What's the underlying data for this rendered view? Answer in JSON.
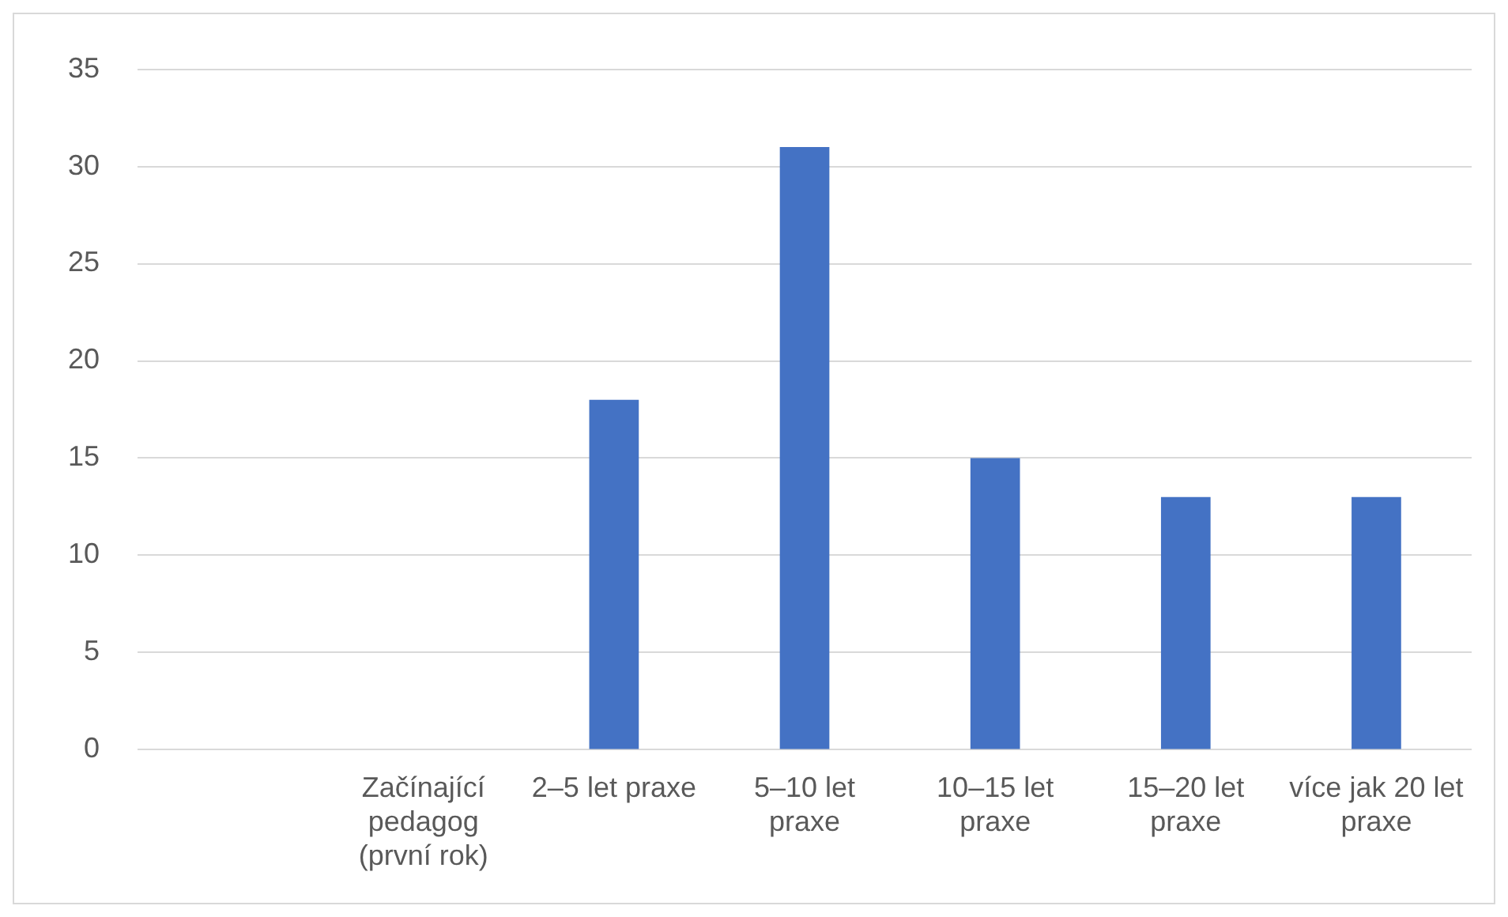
{
  "chart_data": {
    "type": "bar",
    "categories": [
      null,
      "Začínající pedagog (první rok)",
      "2–5 let praxe",
      "5–10 let praxe",
      "10–15 let praxe",
      "15–20 let praxe",
      "více jak 20 let praxe"
    ],
    "values": [
      0,
      0,
      18,
      31,
      15,
      13,
      13
    ],
    "color": "#4472c4",
    "ylim": [
      0,
      35
    ],
    "yticks": [
      0,
      5,
      10,
      15,
      20,
      25,
      30,
      35
    ],
    "grid": "y",
    "legend": false
  }
}
